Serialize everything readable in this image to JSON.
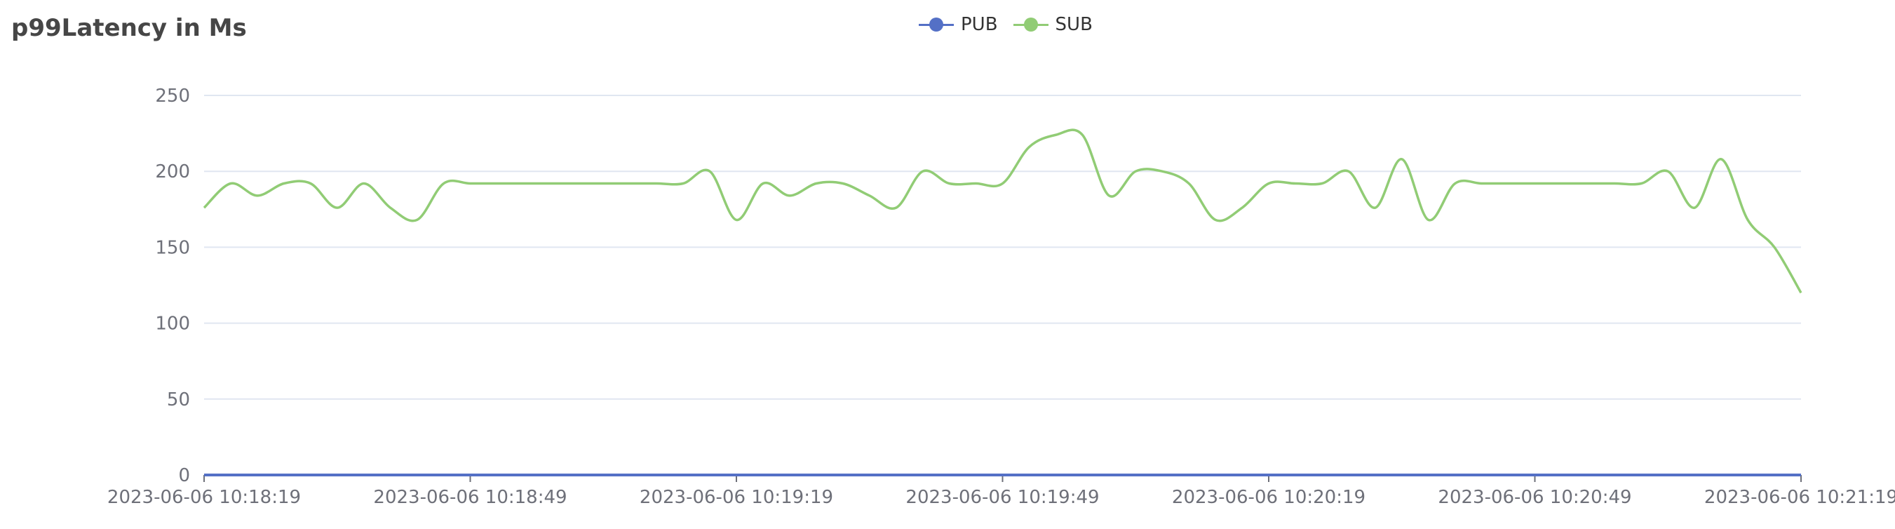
{
  "chart_data": {
    "type": "line",
    "title": "p99Latency in Ms",
    "x_ticks": [
      "2023-06-06 10:18:19",
      "2023-06-06 10:18:49",
      "2023-06-06 10:19:19",
      "2023-06-06 10:19:49",
      "2023-06-06 10:20:19",
      "2023-06-06 10:20:49",
      "2023-06-06 10:21:19"
    ],
    "x_range_seconds": [
      0,
      180
    ],
    "y_ticks": [
      "0",
      "50",
      "100",
      "150",
      "200",
      "250"
    ],
    "ylim": [
      0,
      250
    ],
    "grid": "horizontal",
    "legend_position": "top-center",
    "series": [
      {
        "name": "PUB",
        "color": "#5470c6",
        "values": [
          0,
          0,
          0,
          0,
          0,
          0,
          0,
          0,
          0,
          0,
          0,
          0,
          0,
          0,
          0,
          0,
          0,
          0,
          0,
          0,
          0,
          0,
          0,
          0,
          0,
          0,
          0,
          0,
          0,
          0,
          0,
          0,
          0,
          0,
          0,
          0,
          0,
          0,
          0,
          0,
          0,
          0,
          0,
          0,
          0,
          0,
          0,
          0,
          0,
          0,
          0,
          0,
          0,
          0,
          0,
          0,
          0,
          0,
          0,
          0,
          0
        ]
      },
      {
        "name": "SUB",
        "color": "#91cc75",
        "values": [
          176,
          192,
          184,
          192,
          192,
          176,
          192,
          176,
          168,
          192,
          192,
          192,
          192,
          192,
          192,
          192,
          192,
          192,
          192,
          200,
          168,
          192,
          184,
          192,
          192,
          184,
          176,
          200,
          192,
          192,
          192,
          216,
          224,
          224,
          184,
          200,
          200,
          192,
          168,
          176,
          192,
          192,
          192,
          200,
          176,
          208,
          168,
          192,
          192,
          192,
          192,
          192,
          192,
          192,
          192,
          200,
          176,
          208,
          168,
          150,
          120
        ]
      }
    ]
  }
}
